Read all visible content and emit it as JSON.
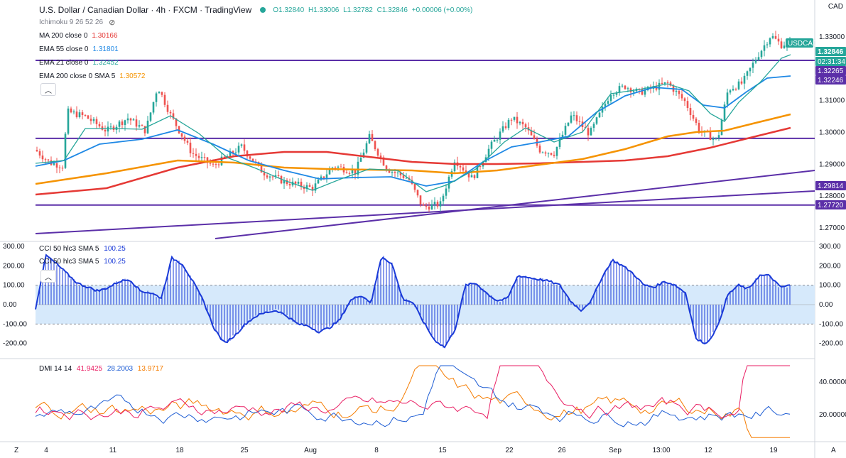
{
  "header": {
    "symbol_title": "U.S. Dollar / Canadian Dollar · 4h · FXCM · TradingView",
    "ohlc": {
      "open": "O1.32840",
      "high": "H1.33006",
      "low": "L1.32782",
      "close": "C1.32846",
      "change": "+0.00006 (+0.00%)"
    },
    "ichimoku_label": "Ichimoku 9 26 52 26"
  },
  "indicators": [
    {
      "label": "MA 200 close 0",
      "value": "1.30166",
      "color": "#e53935"
    },
    {
      "label": "EMA 55 close 0",
      "value": "1.31801",
      "color": "#1e88e5"
    },
    {
      "label": "EMA 21 close 0",
      "value": "1.32452",
      "color": "#26a69a"
    },
    {
      "label": "EMA 200 close 0 SMA 5",
      "value": "1.30572",
      "color": "#f59300"
    }
  ],
  "currency_label": "CAD",
  "price_axis": {
    "ticks": [
      "1.33000",
      "1.31000",
      "1.30000",
      "1.29000",
      "1.28000",
      "1.27000"
    ],
    "tags": [
      {
        "text": "USDCAD",
        "bg": "#26a69a"
      },
      {
        "text": "1.32846",
        "bg": "#26a69a"
      },
      {
        "text": "02:31:34",
        "bg": "#26a69a"
      },
      {
        "text": "1.32265",
        "bg": "#5b2fa8"
      },
      {
        "text": "1.32246",
        "bg": "#5b2fa8"
      },
      {
        "text": "1.29814",
        "bg": "#5b2fa8"
      },
      {
        "text": "1.27720",
        "bg": "#5b2fa8"
      }
    ]
  },
  "cci": {
    "labels": [
      {
        "label": "CCI 50 hlc3 SMA 5",
        "value": "100.25"
      },
      {
        "label": "CCI 50 hlc3 SMA 5",
        "value": "100.25"
      }
    ],
    "axis": [
      "300.00",
      "200.00",
      "100.00",
      "0.00",
      "-100.00",
      "-200.00"
    ],
    "right_axis": [
      "300.00",
      "200.00",
      "100.00",
      "0.00",
      "-100.00",
      "-200.00"
    ]
  },
  "dmi": {
    "label": "DMI 14 14",
    "plus": {
      "value": "41.9425",
      "color": "#e91e63"
    },
    "minus": {
      "value": "28.2003",
      "color": "#1e5dd4"
    },
    "adx": {
      "value": "13.9717",
      "color": "#f57c00"
    },
    "axis": [
      "40.00000",
      "20.00000"
    ]
  },
  "time_axis": [
    "4",
    "11",
    "18",
    "25",
    "Aug",
    "8",
    "15",
    "22",
    "26",
    "Sep",
    "13:00",
    "12",
    "19"
  ],
  "footer": {
    "left_icon": "Z",
    "right_icon": "A"
  },
  "colors": {
    "up": "#26a69a",
    "down": "#ef5350",
    "support": "#5b2fa8",
    "cci_line": "#1a3ad8",
    "cci_band": "#d6e9fb"
  }
}
